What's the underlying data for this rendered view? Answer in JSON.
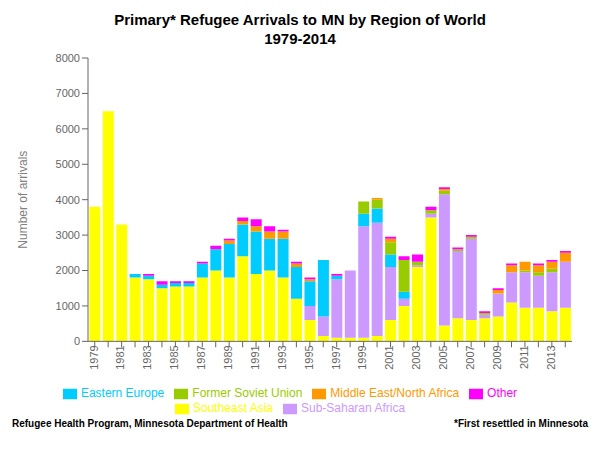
{
  "chart_data": {
    "type": "bar",
    "stacked": true,
    "title": "Primary* Refugee Arrivals to MN by Region of World\n1979-2014",
    "ylabel": "Number of arrivals",
    "categories": [
      "1979",
      null,
      "1981",
      null,
      "1983",
      null,
      "1985",
      null,
      "1987",
      null,
      "1989",
      null,
      "1991",
      null,
      "1993",
      null,
      "1995",
      null,
      "1997",
      null,
      "1999",
      null,
      "2001",
      null,
      "2003",
      null,
      "2005",
      null,
      "2007",
      null,
      "2009",
      null,
      "2011",
      null,
      "2013",
      null
    ],
    "series": [
      {
        "name": "Southeast Asia",
        "color": "#FFFF00",
        "values": [
          3800,
          6500,
          3300,
          1800,
          1750,
          1500,
          1550,
          1550,
          1800,
          2000,
          1800,
          2400,
          1900,
          2000,
          1800,
          1200,
          600,
          150,
          100,
          100,
          100,
          150,
          600,
          1000,
          2100,
          3500,
          450,
          650,
          600,
          650,
          700,
          1100,
          950,
          950,
          850,
          950
        ]
      },
      {
        "name": "Sub-Saharan Africa",
        "color": "#CC99FF",
        "values": [
          0,
          0,
          0,
          0,
          0,
          0,
          0,
          0,
          0,
          0,
          0,
          0,
          0,
          0,
          0,
          0,
          400,
          550,
          1650,
          1900,
          3150,
          3200,
          1500,
          200,
          50,
          100,
          3700,
          1900,
          2300,
          100,
          650,
          850,
          1000,
          900,
          1100,
          1300
        ]
      },
      {
        "name": "Eastern Europe",
        "color": "#00CCFF",
        "values": [
          0,
          0,
          0,
          100,
          100,
          100,
          100,
          100,
          400,
          600,
          950,
          900,
          1200,
          900,
          1100,
          900,
          700,
          1600,
          100,
          0,
          350,
          400,
          350,
          200,
          0,
          0,
          0,
          0,
          0,
          0,
          0,
          0,
          0,
          0,
          0,
          0
        ]
      },
      {
        "name": "Former Soviet Union",
        "color": "#99CC00",
        "values": [
          0,
          0,
          0,
          0,
          0,
          0,
          0,
          0,
          0,
          0,
          0,
          0,
          0,
          0,
          0,
          0,
          0,
          0,
          0,
          0,
          350,
          250,
          350,
          900,
          100,
          100,
          100,
          50,
          50,
          50,
          0,
          0,
          50,
          100,
          100,
          0
        ]
      },
      {
        "name": "Middle East/North Africa",
        "color": "#FF9900",
        "values": [
          0,
          0,
          0,
          0,
          0,
          0,
          0,
          0,
          0,
          0,
          100,
          100,
          150,
          200,
          200,
          100,
          50,
          0,
          0,
          0,
          0,
          50,
          100,
          0,
          0,
          0,
          50,
          0,
          0,
          0,
          100,
          200,
          250,
          200,
          200,
          250
        ]
      },
      {
        "name": "Other",
        "color": "#FF00FF",
        "values": [
          0,
          0,
          0,
          0,
          50,
          100,
          50,
          50,
          50,
          100,
          50,
          100,
          200,
          150,
          50,
          50,
          50,
          0,
          50,
          0,
          0,
          0,
          50,
          100,
          200,
          100,
          50,
          50,
          50,
          50,
          50,
          50,
          0,
          50,
          50,
          50
        ]
      }
    ],
    "ylim": [
      0,
      8000
    ],
    "yticks": [
      0,
      1000,
      2000,
      3000,
      4000,
      5000,
      6000,
      7000,
      8000
    ],
    "grid": false,
    "legend": "bottom",
    "annotations": [
      "Refugee Health Program, Minnesota Department of Health",
      "*First resettled in Minnesota"
    ]
  }
}
